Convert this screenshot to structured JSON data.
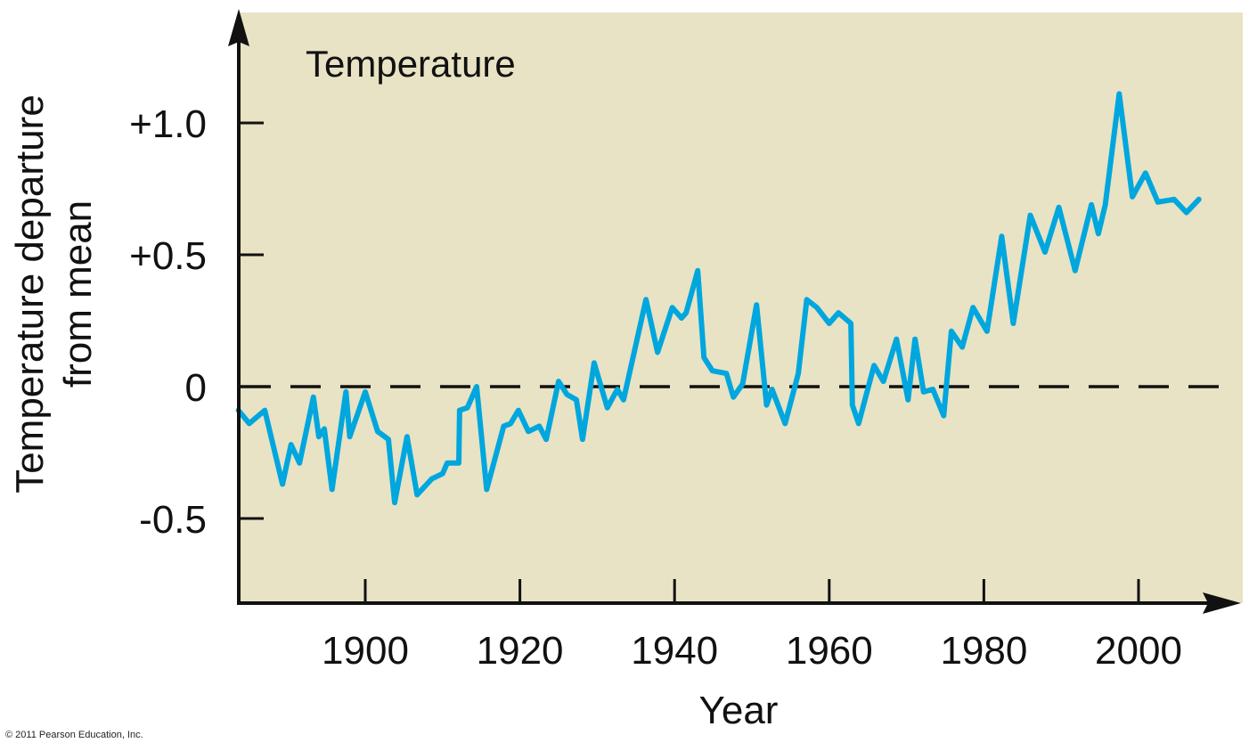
{
  "colors": {
    "plot_background": "#e8e3c4",
    "series_line": "#00a6de",
    "axis": "#111111",
    "zero_line": "#111111"
  },
  "copyright": "© 2011 Pearson Education, Inc.",
  "chart_data": {
    "type": "line",
    "title": "Temperature",
    "xlabel": "Year",
    "ylabel": [
      "Temperature departure",
      "from mean"
    ],
    "xlim": [
      1883.6,
      2013
    ],
    "ylim": [
      -0.8,
      1.3
    ],
    "x_ticks": [
      1900,
      1920,
      1940,
      1960,
      1980,
      2000
    ],
    "x_tick_labels": [
      "1900",
      "1920",
      "1940",
      "1960",
      "1980",
      "2000"
    ],
    "y_ticks": [
      1.0,
      0.5,
      0,
      -0.5
    ],
    "y_tick_labels": [
      "+1.0",
      "+0.5",
      "0",
      "-0.5"
    ],
    "reference_line": {
      "y": 0,
      "style": "dashed"
    },
    "grid": false,
    "legend": "none",
    "series": [
      {
        "name": "Temperature",
        "x": [
          1883.6,
          1885,
          1887,
          1889.3,
          1890.4,
          1891.5,
          1893.3,
          1894,
          1894.7,
          1895.7,
          1897.5,
          1898,
          1900,
          1901.6,
          1903,
          1903.8,
          1905.4,
          1906.7,
          1908.6,
          1910,
          1910.6,
          1912.1,
          1912.2,
          1913.2,
          1914.4,
          1915.7,
          1917.9,
          1918.8,
          1919.8,
          1921.1,
          1922.5,
          1923.4,
          1925,
          1926.1,
          1927.3,
          1928.1,
          1929.6,
          1931.3,
          1932.6,
          1933.4,
          1936.3,
          1937.8,
          1939.7,
          1940.9,
          1941.5,
          1943,
          1943.8,
          1944.9,
          1946.7,
          1947.6,
          1948.8,
          1950.6,
          1951.9,
          1952.6,
          1954.3,
          1956,
          1957.1,
          1958.4,
          1960,
          1961.2,
          1962.8,
          1963,
          1963.8,
          1965.8,
          1967,
          1968.7,
          1970.2,
          1971.1,
          1972.2,
          1973.4,
          1974.8,
          1975.8,
          1977.2,
          1978.6,
          1980.4,
          1982.3,
          1983.8,
          1986,
          1987.9,
          1989.7,
          1991.8,
          1993.9,
          1994.8,
          1995.7,
          1997.5,
          1999.2,
          2000.9,
          2002.5,
          2004.6,
          2006.2,
          2007.8
        ],
        "y": [
          -0.09,
          -0.14,
          -0.09,
          -0.37,
          -0.22,
          -0.29,
          -0.04,
          -0.19,
          -0.16,
          -0.39,
          -0.02,
          -0.19,
          -0.02,
          -0.17,
          -0.2,
          -0.44,
          -0.19,
          -0.41,
          -0.35,
          -0.33,
          -0.29,
          -0.29,
          -0.09,
          -0.08,
          0,
          -0.39,
          -0.15,
          -0.14,
          -0.09,
          -0.17,
          -0.15,
          -0.2,
          0.02,
          -0.03,
          -0.05,
          -0.2,
          0.09,
          -0.08,
          -0.01,
          -0.05,
          0.33,
          0.13,
          0.3,
          0.26,
          0.28,
          0.44,
          0.11,
          0.06,
          0.05,
          -0.04,
          0.01,
          0.31,
          -0.07,
          -0.01,
          -0.14,
          0.05,
          0.33,
          0.3,
          0.24,
          0.28,
          0.24,
          -0.07,
          -0.14,
          0.08,
          0.02,
          0.18,
          -0.05,
          0.18,
          -0.02,
          -0.01,
          -0.11,
          0.21,
          0.15,
          0.3,
          0.21,
          0.57,
          0.24,
          0.65,
          0.51,
          0.68,
          0.44,
          0.69,
          0.58,
          0.69,
          1.11,
          0.72,
          0.81,
          0.7,
          0.71,
          0.66,
          0.71
        ]
      }
    ]
  }
}
